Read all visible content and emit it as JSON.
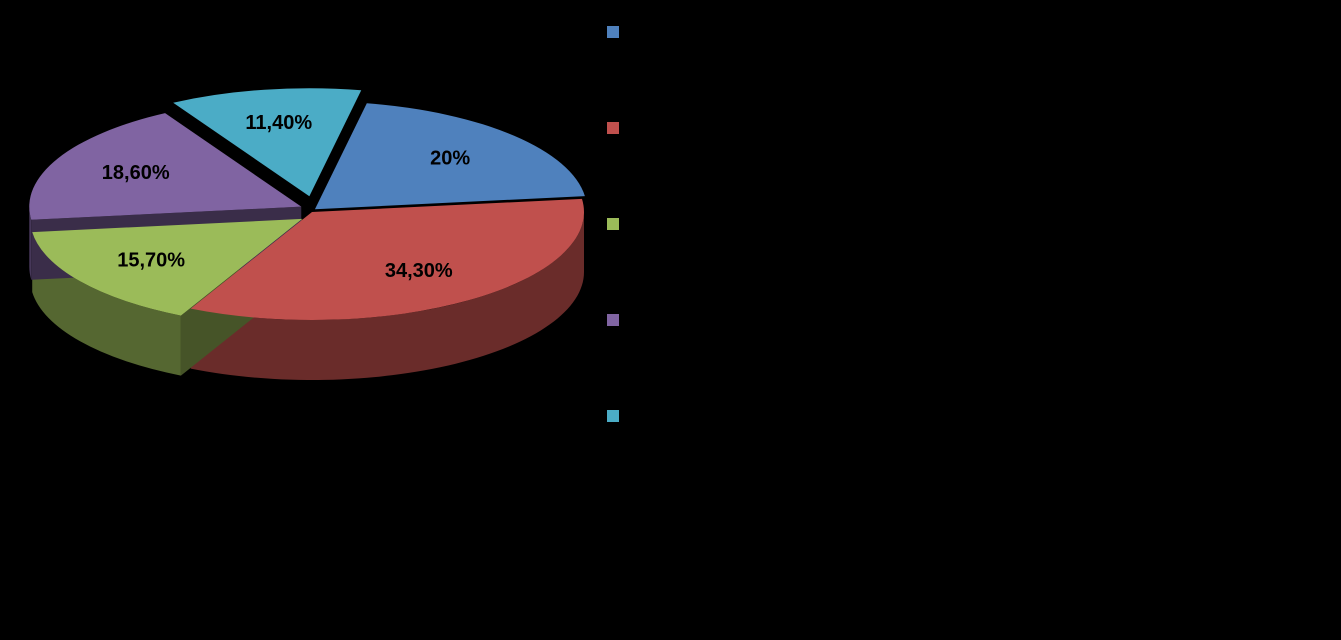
{
  "chart_data": {
    "type": "pie",
    "values": [
      20,
      34.3,
      15.7,
      18.6,
      11.4
    ],
    "value_labels": [
      "20%",
      "34,30%",
      "15,70%",
      "18,60%",
      "11,40%"
    ],
    "colors": [
      "#4f81bd",
      "#c0504d",
      "#9bbb59",
      "#8064a2",
      "#4bacc6"
    ],
    "legend": "right"
  }
}
